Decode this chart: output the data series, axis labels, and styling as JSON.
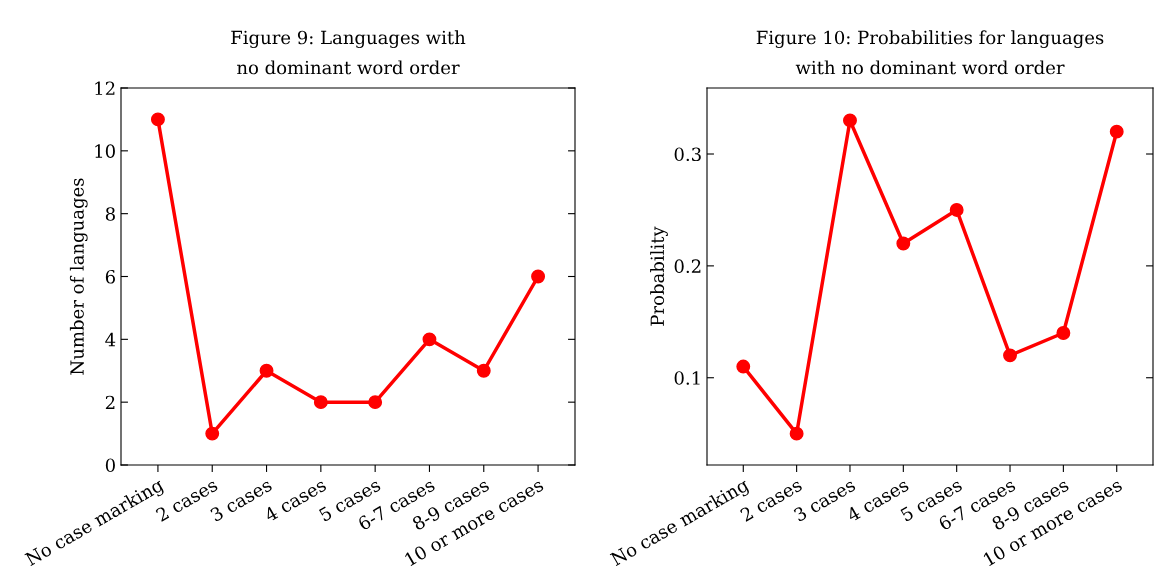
{
  "chart_data": [
    {
      "type": "line",
      "title": "Figure 9: Languages with\nno dominant word order",
      "ylabel": "Number of languages",
      "categories": [
        "No case marking",
        "2 cases",
        "3 cases",
        "4 cases",
        "5 cases",
        "6-7 cases",
        "8-9 cases",
        "10 or more cases"
      ],
      "series": [
        {
          "color": "#ff0000",
          "values": [
            11,
            1,
            3,
            2,
            2,
            4,
            3,
            6
          ]
        }
      ],
      "ylim": [
        0,
        12
      ],
      "yticks": [
        0,
        2,
        4,
        6,
        8,
        10,
        12
      ],
      "marker": "circle",
      "line_style": "solid",
      "grid": false,
      "legend": false
    },
    {
      "type": "line",
      "title": "Figure 10: Probabilities for languages\nwith no dominant word order",
      "ylabel": "Probability",
      "categories": [
        "No case marking",
        "2 cases",
        "3 cases",
        "4 cases",
        "5 cases",
        "6-7 cases",
        "8-9 cases",
        "10 or more cases"
      ],
      "series": [
        {
          "color": "#ff0000",
          "values": [
            0.11,
            0.05,
            0.33,
            0.22,
            0.25,
            0.12,
            0.14,
            0.32
          ]
        }
      ],
      "ylim": [
        0.022,
        0.359
      ],
      "yticks": [
        0.1,
        0.2,
        0.3
      ],
      "marker": "circle",
      "line_style": "solid",
      "grid": false,
      "legend": false
    }
  ]
}
